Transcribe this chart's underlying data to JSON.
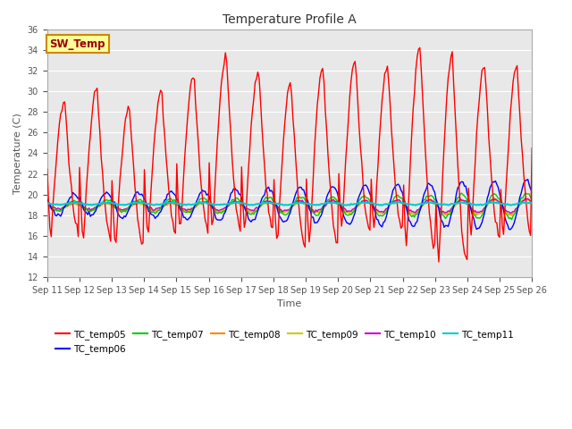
{
  "title": "Temperature Profile A",
  "xlabel": "Time",
  "ylabel": "Temperature (C)",
  "ylim": [
    12,
    36
  ],
  "yticks": [
    12,
    14,
    16,
    18,
    20,
    22,
    24,
    26,
    28,
    30,
    32,
    34,
    36
  ],
  "x_tick_labels": [
    "Sep 11",
    "Sep 12",
    "Sep 13",
    "Sep 14",
    "Sep 15",
    "Sep 16",
    "Sep 17",
    "Sep 18",
    "Sep 19",
    "Sep 20",
    "Sep 21",
    "Sep 22",
    "Sep 23",
    "Sep 24",
    "Sep 25",
    "Sep 26"
  ],
  "fig_bg_color": "#ffffff",
  "plot_bg_color": "#e8e8e8",
  "series_colors": {
    "TC_temp05": "#ff0000",
    "TC_temp06": "#0000ff",
    "TC_temp07": "#00cc00",
    "TC_temp08": "#ff8800",
    "TC_temp09": "#cccc00",
    "TC_temp10": "#cc00cc",
    "TC_temp11": "#00cccc"
  },
  "hours_per_day": 24,
  "total_days": 15,
  "sw_temp_box_color": "#ffff99",
  "sw_temp_text_color": "#990000",
  "sw_temp_border_color": "#cc8800"
}
